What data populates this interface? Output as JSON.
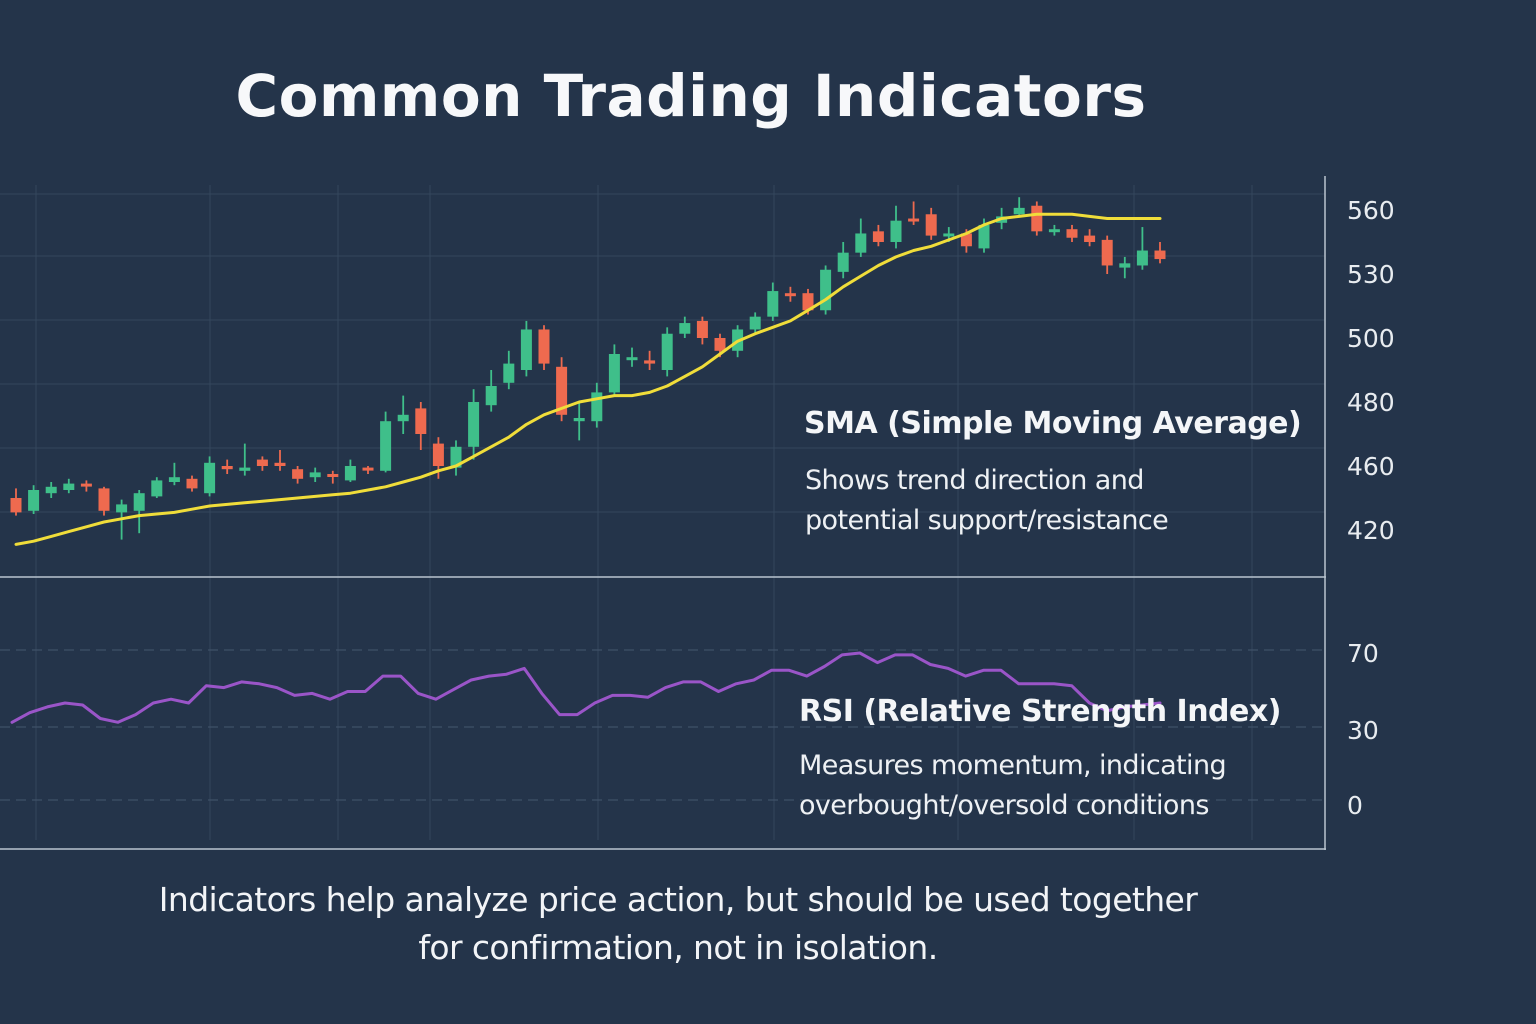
{
  "title": "Common Trading Indicators",
  "sma_annotation": {
    "title": "SMA (Simple Moving Average)",
    "line1": "Shows trend direction and",
    "line2": "potential support/resistance"
  },
  "rsi_annotation": {
    "title": "RSI (Relative Strength Index)",
    "line1": "Measures momentum, indicating",
    "line2": "overbought/oversold conditions"
  },
  "footer": {
    "line1": "Indicators help analyze price action, but should be used together",
    "line2": "for confirmation, not in isolation."
  },
  "colors": {
    "background": "#24344a",
    "bullish": "#3fbf8a",
    "bearish": "#ee6a4f",
    "sma": "#f0dd3a",
    "rsi": "#9a55c8",
    "grid": "#34465c",
    "axis": "#b9c4cf"
  },
  "chart_data": [
    {
      "type": "candlestick",
      "y_ticks": [
        "560",
        "530",
        "500",
        "480",
        "460",
        "420"
      ],
      "candles": [
        [
          440,
          431,
          446,
          429
        ],
        [
          432,
          445,
          448,
          430
        ],
        [
          443,
          447,
          450,
          440
        ],
        [
          445,
          449,
          452,
          443
        ],
        [
          449,
          448,
          451,
          444
        ],
        [
          446,
          432,
          447,
          429
        ],
        [
          431,
          436,
          439,
          414
        ],
        [
          432,
          443,
          445,
          418
        ],
        [
          441,
          451,
          453,
          440
        ],
        [
          450,
          453,
          461,
          448
        ],
        [
          452,
          446,
          454,
          444
        ],
        [
          443,
          461,
          463,
          441
        ],
        [
          460,
          458,
          462,
          455
        ],
        [
          457,
          459,
          467,
          454
        ],
        [
          462,
          460,
          463,
          457
        ],
        [
          461,
          460,
          465,
          457
        ],
        [
          458,
          452,
          460,
          449
        ],
        [
          453,
          456,
          459,
          450
        ],
        [
          455,
          454,
          457,
          449
        ],
        [
          451,
          460,
          462,
          450
        ],
        [
          459,
          458,
          460,
          455
        ],
        [
          457,
          474,
          477,
          456
        ],
        [
          474,
          476,
          482,
          470
        ],
        [
          478,
          470,
          480,
          465
        ],
        [
          467,
          460,
          469,
          452
        ],
        [
          459,
          466,
          468,
          454
        ],
        [
          466,
          480,
          484,
          462
        ],
        [
          479,
          485,
          490,
          477
        ],
        [
          486,
          492,
          496,
          484
        ],
        [
          490,
          504,
          508,
          488
        ],
        [
          504,
          492,
          506,
          490
        ],
        [
          491,
          476,
          494,
          474
        ],
        [
          474,
          475,
          480,
          468
        ],
        [
          474,
          483,
          486,
          472
        ],
        [
          483,
          495,
          498,
          482
        ],
        [
          494,
          494,
          497,
          491
        ],
        [
          493,
          492,
          496,
          490
        ],
        [
          490,
          502,
          505,
          488
        ],
        [
          502,
          507,
          510,
          500
        ],
        [
          508,
          500,
          510,
          498
        ],
        [
          500,
          496,
          502,
          494
        ],
        [
          496,
          504,
          506,
          494
        ],
        [
          504,
          510,
          512,
          502
        ],
        [
          510,
          522,
          526,
          508
        ],
        [
          521,
          520,
          524,
          517
        ],
        [
          521,
          513,
          523,
          511
        ],
        [
          513,
          532,
          534,
          511
        ],
        [
          531,
          540,
          545,
          528
        ],
        [
          540,
          549,
          556,
          538
        ],
        [
          550,
          545,
          553,
          543
        ],
        [
          545,
          555,
          562,
          542
        ],
        [
          556,
          555,
          564,
          553
        ],
        [
          558,
          548,
          561,
          546
        ],
        [
          548,
          549,
          552,
          545
        ],
        [
          549,
          543,
          551,
          540
        ],
        [
          542,
          553,
          556,
          540
        ],
        [
          554,
          557,
          561,
          551
        ],
        [
          558,
          561,
          566,
          557
        ],
        [
          562,
          550,
          564,
          548
        ],
        [
          550,
          551,
          553,
          548
        ],
        [
          551,
          547,
          553,
          545
        ],
        [
          548,
          545,
          551,
          543
        ],
        [
          546,
          534,
          548,
          530
        ],
        [
          533,
          535,
          538,
          528
        ],
        [
          534,
          541,
          552,
          532
        ],
        [
          541,
          537,
          545,
          535
        ]
      ],
      "sma": [
        411,
        413,
        416,
        419,
        422,
        425,
        427,
        429,
        430,
        431,
        433,
        435,
        436,
        437,
        438,
        439,
        440,
        441,
        442,
        443,
        445,
        447,
        450,
        453,
        457,
        460,
        463,
        466,
        469,
        473,
        476,
        478,
        480,
        481,
        482,
        482,
        483,
        485,
        488,
        491,
        495,
        499,
        502,
        505,
        508,
        513,
        518,
        524,
        529,
        534,
        538,
        541,
        543,
        546,
        549,
        553,
        556,
        557,
        558,
        558,
        558,
        557,
        556,
        556,
        556,
        556
      ]
    },
    {
      "type": "line",
      "y_ticks": [
        "70",
        "30",
        "0"
      ],
      "values": [
        34,
        39,
        42,
        44,
        43,
        36,
        34,
        38,
        44,
        46,
        44,
        53,
        52,
        55,
        54,
        52,
        48,
        49,
        46,
        50,
        50,
        58,
        58,
        49,
        46,
        51,
        56,
        58,
        59,
        62,
        49,
        38,
        38,
        44,
        48,
        48,
        47,
        52,
        55,
        55,
        50,
        54,
        56,
        61,
        61,
        58,
        63,
        69,
        70,
        65,
        69,
        69,
        64,
        62,
        58,
        61,
        61,
        54,
        54,
        54,
        53,
        44,
        40,
        42,
        43,
        44
      ]
    }
  ]
}
